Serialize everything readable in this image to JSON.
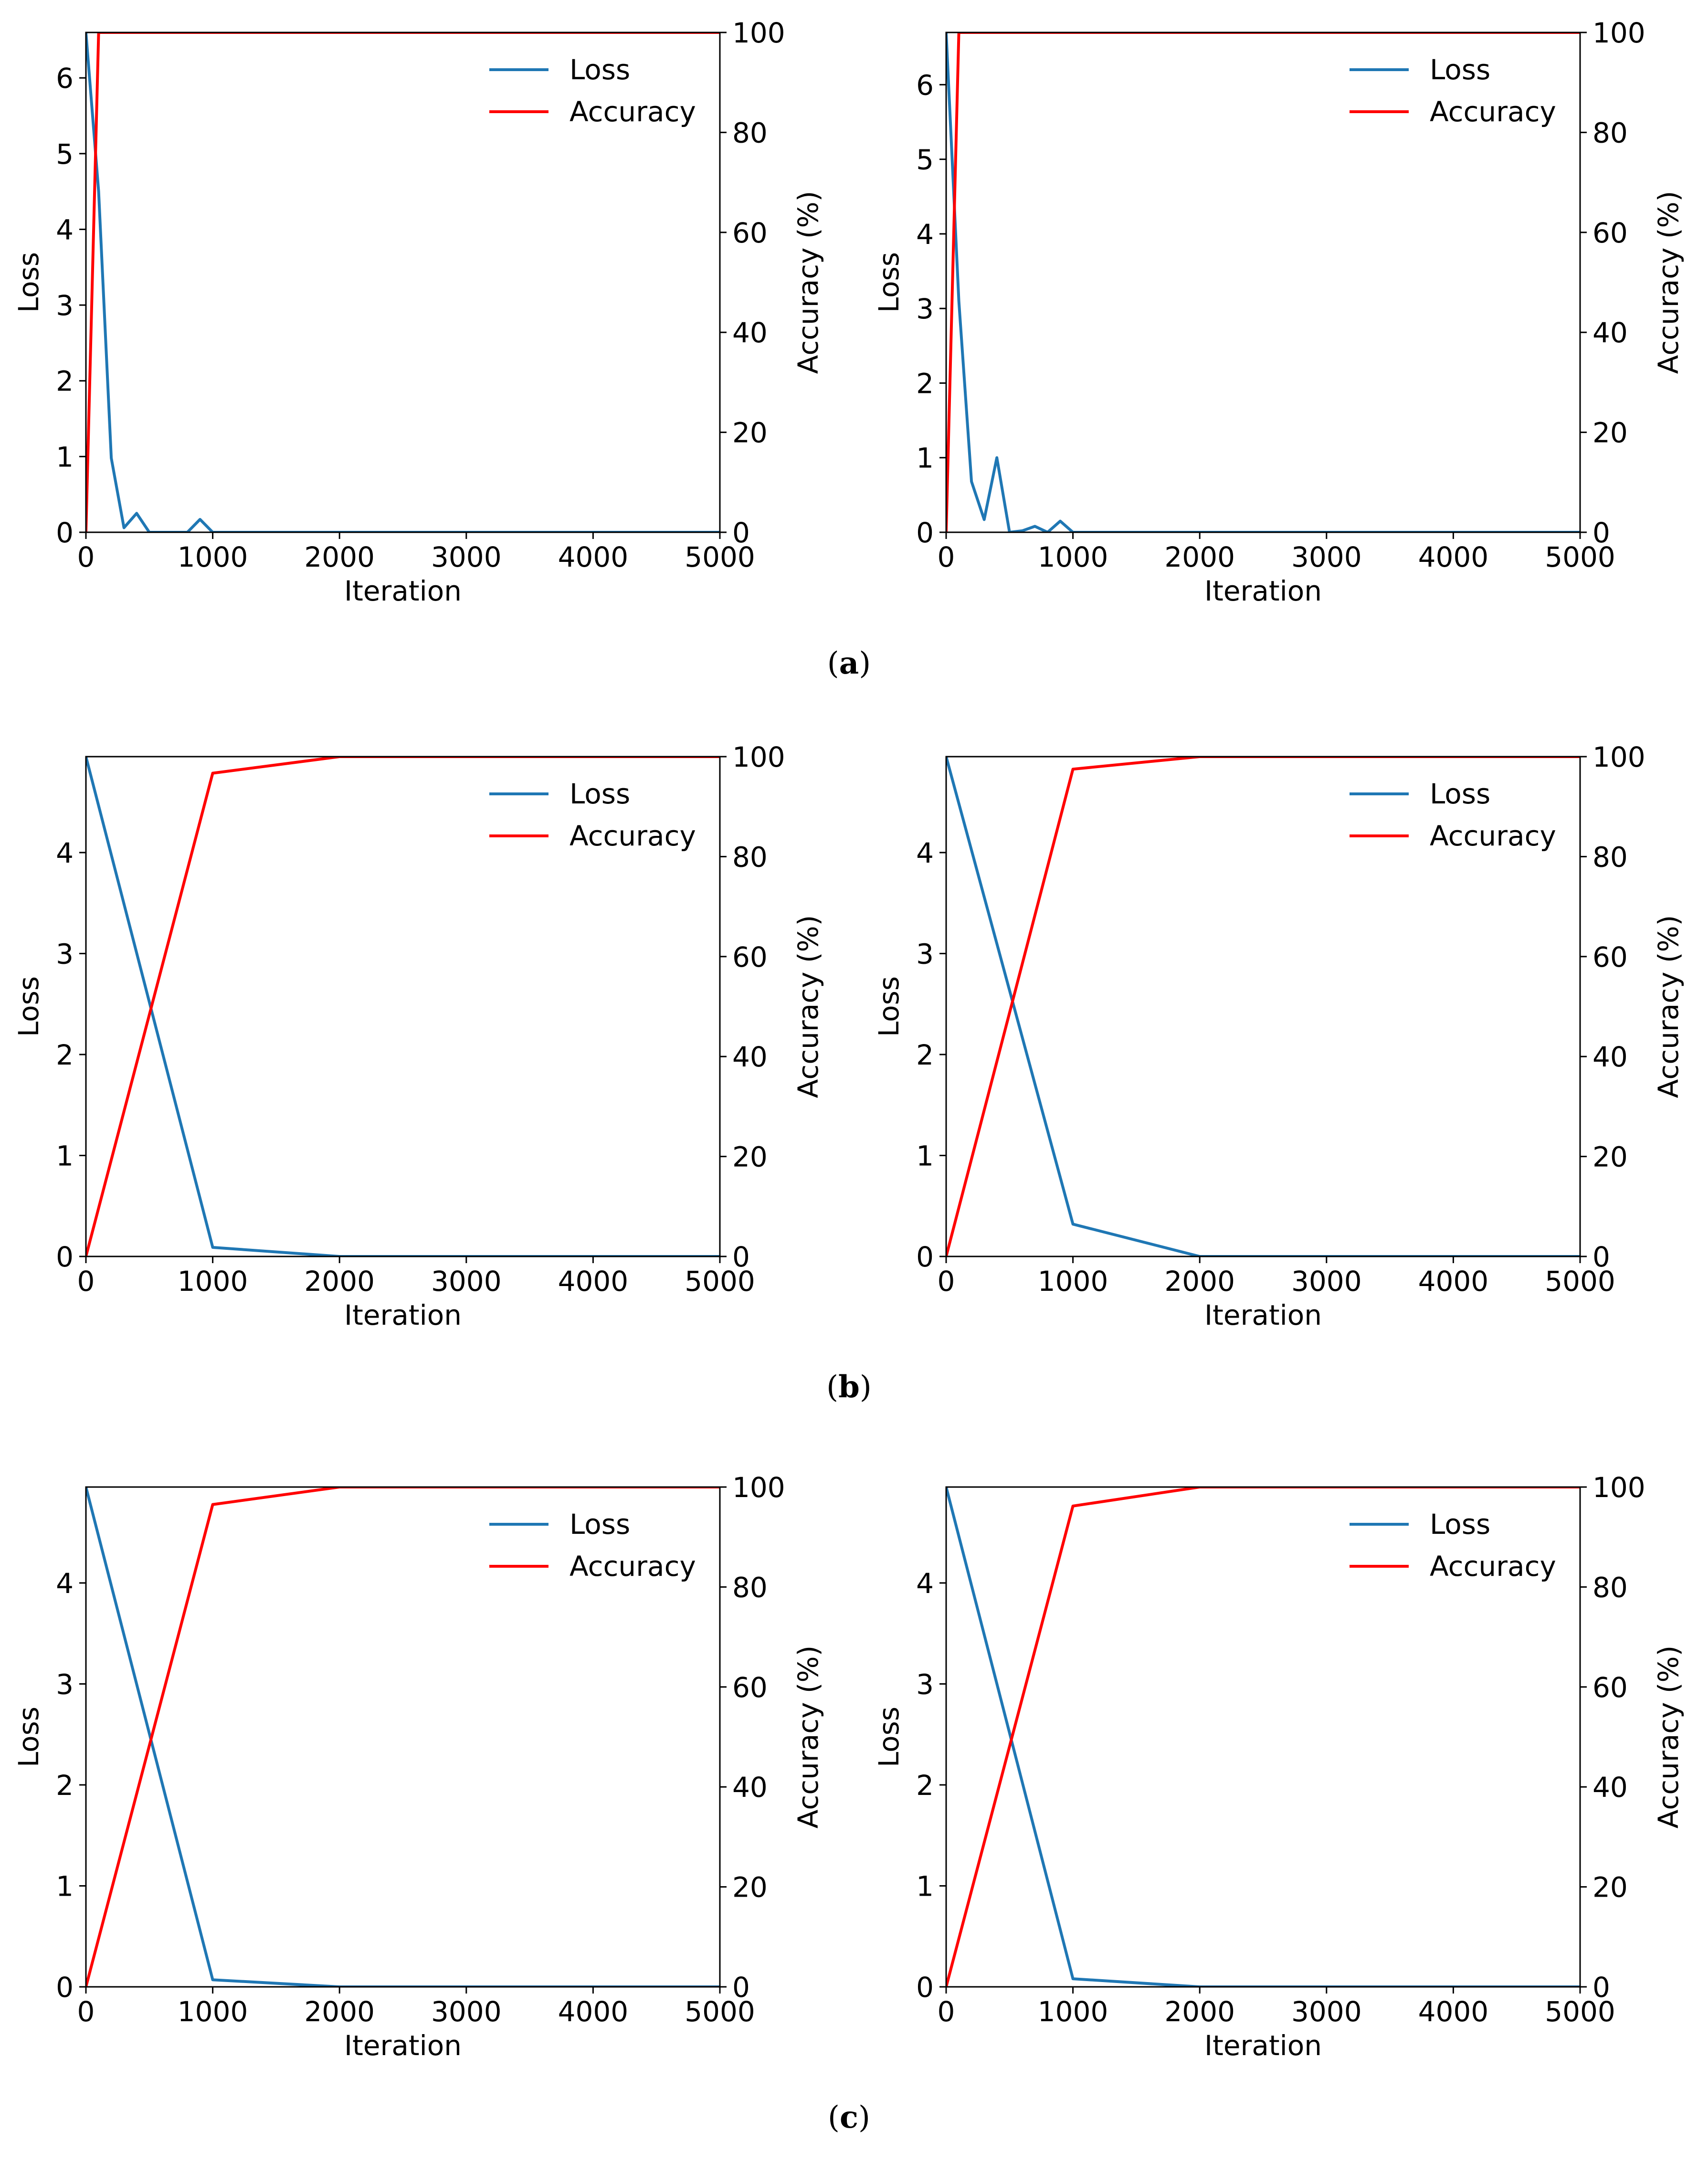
{
  "colors": {
    "loss": "#1f77b4",
    "accuracy": "#ff0000",
    "axis": "#000000",
    "background": "#ffffff"
  },
  "captions": [
    {
      "open": "(",
      "label": "a",
      "close": ")"
    },
    {
      "open": "(",
      "label": "b",
      "close": ")"
    },
    {
      "open": "(",
      "label": "c",
      "close": ")"
    }
  ],
  "chart_data": [
    {
      "id": "a-left",
      "row": 0,
      "col": 0,
      "type": "line",
      "xlabel": "Iteration",
      "ylabel": "Loss",
      "y2label": "Accuracy (%)",
      "xlim": [
        0,
        5000
      ],
      "ylim": [
        0,
        6.6
      ],
      "y2lim": [
        0,
        100
      ],
      "xticks": [
        0,
        1000,
        2000,
        3000,
        4000,
        5000
      ],
      "yticks": [
        0,
        1,
        2,
        3,
        4,
        5,
        6
      ],
      "y2ticks": [
        0,
        20,
        40,
        60,
        80,
        100
      ],
      "legend": {
        "position": "top-right",
        "entries": [
          "Loss",
          "Accuracy"
        ]
      },
      "series": [
        {
          "name": "Loss",
          "axis": "left",
          "x": [
            0,
            100,
            200,
            300,
            400,
            500,
            600,
            700,
            800,
            900,
            1000,
            2000,
            3000,
            4000,
            5000
          ],
          "y": [
            6.6,
            4.5,
            0.98,
            0.06,
            0.25,
            0.0,
            0.0,
            0.0,
            0.0,
            0.17,
            0.0,
            0.0,
            0.0,
            0.0,
            0.0
          ]
        },
        {
          "name": "Accuracy",
          "axis": "right",
          "x": [
            0,
            100,
            200,
            1000,
            2000,
            3000,
            4000,
            5000
          ],
          "y": [
            0,
            100,
            100,
            100,
            100,
            100,
            100,
            100
          ]
        }
      ]
    },
    {
      "id": "a-right",
      "row": 0,
      "col": 1,
      "type": "line",
      "xlabel": "Iteration",
      "ylabel": "Loss",
      "y2label": "Accuracy (%)",
      "xlim": [
        0,
        5000
      ],
      "ylim": [
        0,
        6.7
      ],
      "y2lim": [
        0,
        100
      ],
      "xticks": [
        0,
        1000,
        2000,
        3000,
        4000,
        5000
      ],
      "yticks": [
        0,
        1,
        2,
        3,
        4,
        5,
        6
      ],
      "y2ticks": [
        0,
        20,
        40,
        60,
        80,
        100
      ],
      "legend": {
        "position": "top-right",
        "entries": [
          "Loss",
          "Accuracy"
        ]
      },
      "series": [
        {
          "name": "Loss",
          "axis": "left",
          "x": [
            0,
            100,
            200,
            300,
            400,
            500,
            600,
            700,
            800,
            900,
            1000,
            2000,
            3000,
            4000,
            5000
          ],
          "y": [
            6.7,
            3.1,
            0.68,
            0.17,
            1.0,
            0.0,
            0.02,
            0.08,
            0.0,
            0.15,
            0.0,
            0.0,
            0.0,
            0.0,
            0.0
          ]
        },
        {
          "name": "Accuracy",
          "axis": "right",
          "x": [
            0,
            100,
            200,
            1000,
            2000,
            3000,
            4000,
            5000
          ],
          "y": [
            0,
            100,
            100,
            100,
            100,
            100,
            100,
            100
          ]
        }
      ]
    },
    {
      "id": "b-left",
      "row": 1,
      "col": 0,
      "type": "line",
      "xlabel": "Iteration",
      "ylabel": "Loss",
      "y2label": "Accuracy (%)",
      "xlim": [
        0,
        5000
      ],
      "ylim": [
        0,
        4.95
      ],
      "y2lim": [
        0,
        100
      ],
      "xticks": [
        0,
        1000,
        2000,
        3000,
        4000,
        5000
      ],
      "yticks": [
        0,
        1,
        2,
        3,
        4
      ],
      "y2ticks": [
        0,
        20,
        40,
        60,
        80,
        100
      ],
      "legend": {
        "position": "top-right",
        "entries": [
          "Loss",
          "Accuracy"
        ]
      },
      "series": [
        {
          "name": "Loss",
          "axis": "left",
          "x": [
            0,
            1000,
            2000,
            3000,
            4000,
            5000
          ],
          "y": [
            4.95,
            0.09,
            0.0,
            0.0,
            0.0,
            0.0
          ]
        },
        {
          "name": "Accuracy",
          "axis": "right",
          "x": [
            0,
            1000,
            2000,
            3000,
            4000,
            5000
          ],
          "y": [
            0,
            96.7,
            100,
            100,
            100,
            100
          ]
        }
      ]
    },
    {
      "id": "b-right",
      "row": 1,
      "col": 1,
      "type": "line",
      "xlabel": "Iteration",
      "ylabel": "Loss",
      "y2label": "Accuracy (%)",
      "xlim": [
        0,
        5000
      ],
      "ylim": [
        0,
        4.95
      ],
      "y2lim": [
        0,
        100
      ],
      "xticks": [
        0,
        1000,
        2000,
        3000,
        4000,
        5000
      ],
      "yticks": [
        0,
        1,
        2,
        3,
        4
      ],
      "y2ticks": [
        0,
        20,
        40,
        60,
        80,
        100
      ],
      "legend": {
        "position": "top-right",
        "entries": [
          "Loss",
          "Accuracy"
        ]
      },
      "series": [
        {
          "name": "Loss",
          "axis": "left",
          "x": [
            0,
            1000,
            2000,
            3000,
            4000,
            5000
          ],
          "y": [
            4.95,
            0.32,
            0.0,
            0.0,
            0.0,
            0.0
          ]
        },
        {
          "name": "Accuracy",
          "axis": "right",
          "x": [
            0,
            1000,
            2000,
            3000,
            4000,
            5000
          ],
          "y": [
            0,
            97.5,
            100,
            100,
            100,
            100
          ]
        }
      ]
    },
    {
      "id": "c-left",
      "row": 2,
      "col": 0,
      "type": "line",
      "xlabel": "Iteration",
      "ylabel": "Loss",
      "y2label": "Accuracy (%)",
      "xlim": [
        0,
        5000
      ],
      "ylim": [
        0,
        4.95
      ],
      "y2lim": [
        0,
        100
      ],
      "xticks": [
        0,
        1000,
        2000,
        3000,
        4000,
        5000
      ],
      "yticks": [
        0,
        1,
        2,
        3,
        4
      ],
      "y2ticks": [
        0,
        20,
        40,
        60,
        80,
        100
      ],
      "legend": {
        "position": "top-right",
        "entries": [
          "Loss",
          "Accuracy"
        ]
      },
      "series": [
        {
          "name": "Loss",
          "axis": "left",
          "x": [
            0,
            1000,
            2000,
            3000,
            4000,
            5000
          ],
          "y": [
            4.95,
            0.07,
            0.0,
            0.0,
            0.0,
            0.0
          ]
        },
        {
          "name": "Accuracy",
          "axis": "right",
          "x": [
            0,
            1000,
            2000,
            3000,
            4000,
            5000
          ],
          "y": [
            0,
            96.5,
            100,
            100,
            100,
            100
          ]
        }
      ]
    },
    {
      "id": "c-right",
      "row": 2,
      "col": 1,
      "type": "line",
      "xlabel": "Iteration",
      "ylabel": "Loss",
      "y2label": "Accuracy (%)",
      "xlim": [
        0,
        5000
      ],
      "ylim": [
        0,
        4.95
      ],
      "y2lim": [
        0,
        100
      ],
      "xticks": [
        0,
        1000,
        2000,
        3000,
        4000,
        5000
      ],
      "yticks": [
        0,
        1,
        2,
        3,
        4
      ],
      "y2ticks": [
        0,
        20,
        40,
        60,
        80,
        100
      ],
      "legend": {
        "position": "top-right",
        "entries": [
          "Loss",
          "Accuracy"
        ]
      },
      "series": [
        {
          "name": "Loss",
          "axis": "left",
          "x": [
            0,
            1000,
            2000,
            3000,
            4000,
            5000
          ],
          "y": [
            4.95,
            0.08,
            0.0,
            0.0,
            0.0,
            0.0
          ]
        },
        {
          "name": "Accuracy",
          "axis": "right",
          "x": [
            0,
            1000,
            2000,
            3000,
            4000,
            5000
          ],
          "y": [
            0,
            96.2,
            100,
            100,
            100,
            100
          ]
        }
      ]
    }
  ]
}
